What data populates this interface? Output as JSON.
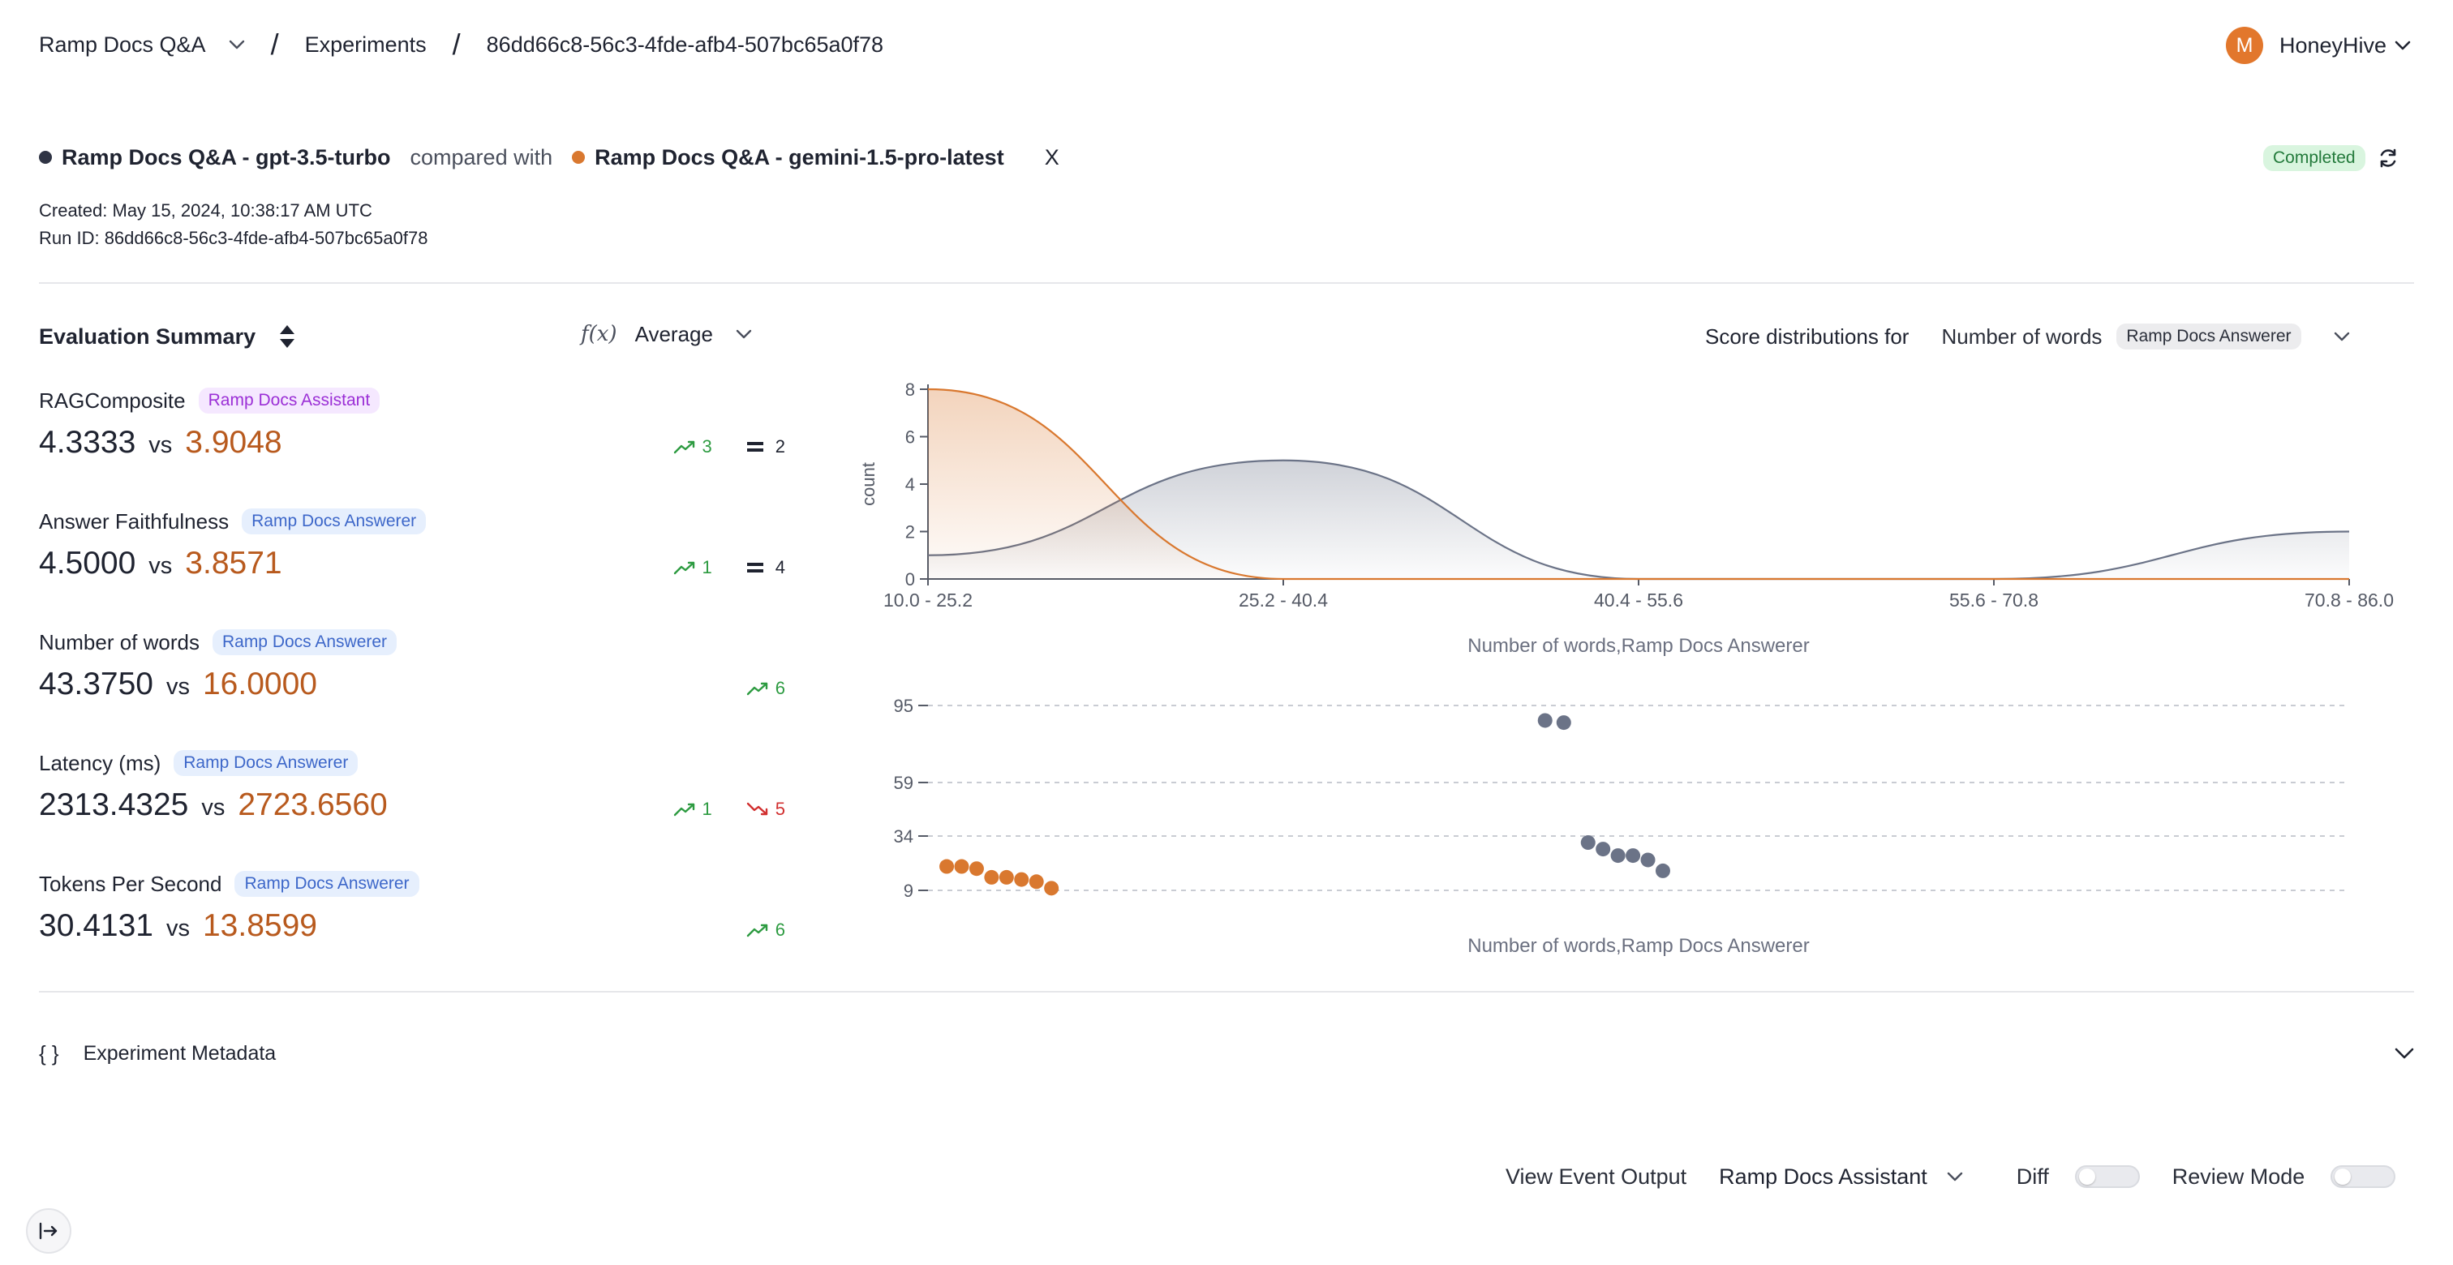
{
  "breadcrumb": {
    "project": "Ramp Docs Q&A",
    "section": "Experiments",
    "run": "86dd66c8-56c3-4fde-afb4-507bc65a0f78"
  },
  "user": {
    "initial": "M",
    "org": "HoneyHive"
  },
  "compare": {
    "left": "Ramp Docs Q&A - gpt-3.5-turbo",
    "middle": "compared with",
    "right": "Ramp Docs Q&A - gemini-1.5-pro-latest",
    "close": "X",
    "status": "Completed"
  },
  "meta": {
    "created": "Created: May 15, 2024, 10:38:17 AM UTC",
    "run_id": "Run ID: 86dd66c8-56c3-4fde-afb4-507bc65a0f78"
  },
  "summary": {
    "title": "Evaluation Summary",
    "fx_icon": "f(x)",
    "aggregation": "Average",
    "vs": "vs",
    "metrics": [
      {
        "name": "RAGComposite",
        "tag": "Ramp Docs Assistant",
        "a": "4.3333",
        "b": "3.9048",
        "up": "3",
        "eq": "2",
        "down": ""
      },
      {
        "name": "Answer Faithfulness",
        "tag": "Ramp Docs Answerer",
        "a": "4.5000",
        "b": "3.8571",
        "up": "1",
        "eq": "4",
        "down": ""
      },
      {
        "name": "Number of words",
        "tag": "Ramp Docs Answerer",
        "a": "43.3750",
        "b": "16.0000",
        "up": "6",
        "eq": "",
        "down": ""
      },
      {
        "name": "Latency (ms)",
        "tag": "Ramp Docs Answerer",
        "a": "2313.4325",
        "b": "2723.6560",
        "up": "1",
        "eq": "",
        "down": "5"
      },
      {
        "name": "Tokens Per Second",
        "tag": "Ramp Docs Answerer",
        "a": "30.4131",
        "b": "13.8599",
        "up": "6",
        "eq": "",
        "down": ""
      }
    ]
  },
  "distribution": {
    "label": "Score distributions for",
    "metric": "Number of words",
    "tag": "Ramp Docs Answerer"
  },
  "chart_data": [
    {
      "type": "area",
      "ylabel": "count",
      "xlabel": "Number of words,Ramp Docs Answerer",
      "categories": [
        "10.0 - 25.2",
        "25.2 - 40.4",
        "40.4 - 55.6",
        "55.6 - 70.8",
        "70.8 - 86.0"
      ],
      "yticks": [
        0,
        2,
        4,
        6,
        8
      ],
      "ylim": [
        0,
        8
      ],
      "series": [
        {
          "color": "#6b7387",
          "values": [
            1,
            5,
            0,
            0,
            2
          ]
        },
        {
          "color": "#d9782f",
          "values": [
            8,
            0,
            0,
            0,
            0
          ]
        }
      ]
    },
    {
      "type": "scatter",
      "xlabel": "Number of words,Ramp Docs Answerer",
      "yticks": [
        95,
        59,
        34,
        9
      ],
      "ylim": [
        9,
        95
      ],
      "grid": true,
      "series": [
        {
          "color": "#6b7387",
          "points": [
            [
              43.0,
              88
            ],
            [
              44.0,
              87
            ],
            [
              45.3,
              31
            ],
            [
              46.1,
              28
            ],
            [
              46.9,
              25
            ],
            [
              47.7,
              25
            ],
            [
              48.5,
              23
            ],
            [
              49.3,
              18
            ]
          ]
        },
        {
          "color": "#d9782f",
          "points": [
            [
              11.0,
              20
            ],
            [
              11.8,
              20
            ],
            [
              12.6,
              19
            ],
            [
              13.4,
              15
            ],
            [
              14.2,
              15
            ],
            [
              15.0,
              14
            ],
            [
              15.8,
              13
            ],
            [
              16.6,
              10
            ]
          ]
        }
      ]
    }
  ],
  "metadata_section": {
    "braces": "{ }",
    "title": "Experiment Metadata"
  },
  "bottom": {
    "view_event_output": "View Event Output",
    "selector": "Ramp Docs Assistant",
    "diff": "Diff",
    "review_mode": "Review Mode"
  },
  "icons": {
    "chevron": "chevron-down-icon",
    "refresh": "refresh-icon",
    "sort": "sort-icon",
    "collapse": "sidebar-expand-icon"
  }
}
